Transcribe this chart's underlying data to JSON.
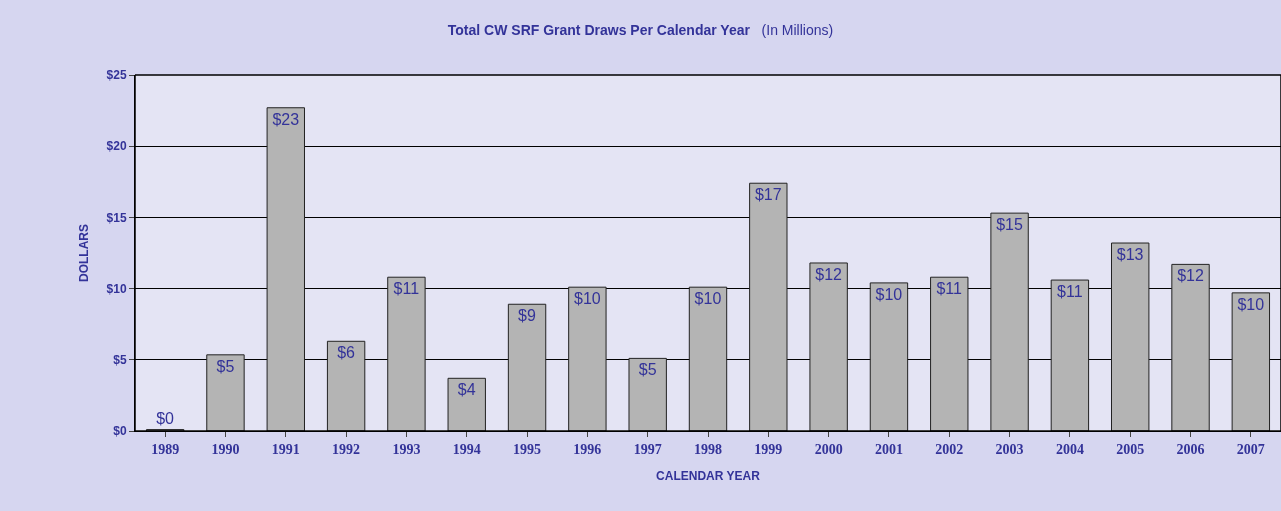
{
  "chart_data": {
    "type": "bar",
    "title": "Total CW SRF Grant Draws Per Calendar Year",
    "subtitle": "(In Millions)",
    "xlabel": "CALENDAR YEAR",
    "ylabel": "DOLLARS",
    "categories": [
      "1989",
      "1990",
      "1991",
      "1992",
      "1993",
      "1994",
      "1995",
      "1996",
      "1997",
      "1998",
      "1999",
      "2000",
      "2001",
      "2002",
      "2003",
      "2004",
      "2005",
      "2006",
      "2007"
    ],
    "values": [
      0.1,
      5.35,
      22.7,
      6.3,
      10.8,
      3.7,
      8.9,
      10.1,
      5.1,
      10.1,
      17.4,
      11.8,
      10.4,
      10.8,
      15.3,
      10.6,
      13.2,
      11.7,
      9.7
    ],
    "value_labels": [
      "$0",
      "$5",
      "$23",
      "$6",
      "$11",
      "$4",
      "$9",
      "$10",
      "$5",
      "$10",
      "$17",
      "$12",
      "$10",
      "$11",
      "$15",
      "$11",
      "$13",
      "$12",
      "$10"
    ],
    "color": "#b4b4b4",
    "ylim": [
      0,
      25
    ],
    "yticks": [
      {
        "value": 0,
        "label": "$0"
      },
      {
        "value": 5,
        "label": "$5"
      },
      {
        "value": 10,
        "label": "$10"
      },
      {
        "value": 15,
        "label": "$15"
      },
      {
        "value": 20,
        "label": "$20"
      },
      {
        "value": 25,
        "label": "$25"
      }
    ],
    "grid": "y"
  }
}
